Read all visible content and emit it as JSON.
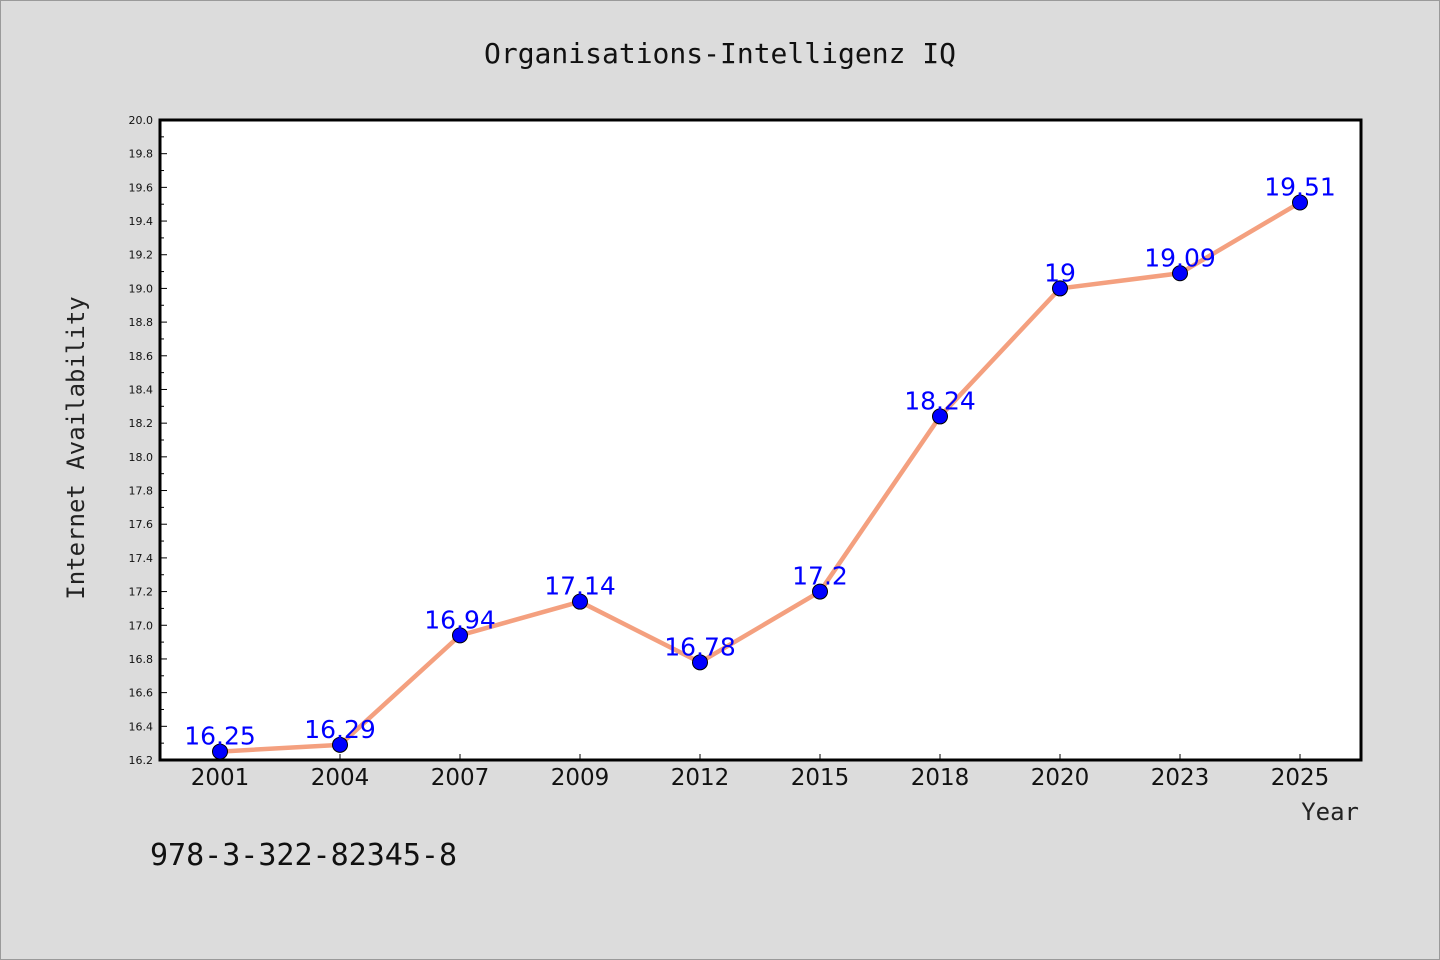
{
  "chart_data": {
    "type": "line",
    "title": "Organisations-Intelligenz IQ",
    "xlabel": "Year",
    "ylabel": "Internet Availability",
    "categories": [
      "2001",
      "2004",
      "2007",
      "2009",
      "2012",
      "2015",
      "2018",
      "2020",
      "2023",
      "2025"
    ],
    "series": [
      {
        "values": [
          16.25,
          16.29,
          16.94,
          17.14,
          16.78,
          17.2,
          18.24,
          19,
          19.09,
          19.51
        ],
        "data_labels": [
          "16.25",
          "16.29",
          "16.94",
          "17.14",
          "16.78",
          "17.2",
          "18.24",
          "19",
          "19.09",
          "19.51"
        ]
      }
    ],
    "ylim": [
      16.2,
      20.0
    ],
    "yticks": [
      "16.2",
      "16.4",
      "16.6",
      "16.8",
      "17.0",
      "17.2",
      "17.4",
      "17.6",
      "17.8",
      "18.0",
      "18.2",
      "18.4",
      "18.6",
      "18.8",
      "19.0",
      "19.2",
      "19.4",
      "19.6",
      "19.8",
      "20.0"
    ],
    "grid": false,
    "legend": "none",
    "colors": {
      "line": "#f4a07f",
      "marker": "#0000ff",
      "label": "#0000ff",
      "background": "#dcdcdc",
      "plot_background": "#ffffff"
    }
  },
  "footnote": "978-3-322-82345-8"
}
